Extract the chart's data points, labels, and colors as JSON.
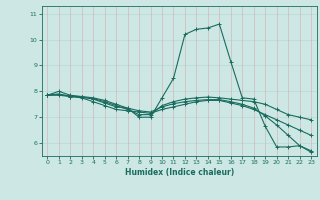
{
  "xlabel": "Humidex (Indice chaleur)",
  "background_color": "#cde8e4",
  "line_color": "#1a6b5e",
  "grid_color_h": "#b8d8d4",
  "grid_color_v": "#d4b8b8",
  "xlim": [
    -0.5,
    23.5
  ],
  "ylim": [
    5.5,
    11.3
  ],
  "yticks": [
    6,
    7,
    8,
    9,
    10,
    11
  ],
  "xticks": [
    0,
    1,
    2,
    3,
    4,
    5,
    6,
    7,
    8,
    9,
    10,
    11,
    12,
    13,
    14,
    15,
    16,
    17,
    18,
    19,
    20,
    21,
    22,
    23
  ],
  "lines": [
    {
      "x": [
        0,
        1,
        2,
        3,
        4,
        5,
        6,
        7,
        8,
        9,
        10,
        11,
        12,
        13,
        14,
        15,
        16,
        17,
        18,
        19,
        20,
        21,
        22,
        23
      ],
      "y": [
        7.85,
        8.0,
        7.85,
        7.8,
        7.75,
        7.65,
        7.5,
        7.35,
        7.0,
        7.0,
        7.75,
        8.5,
        10.2,
        10.4,
        10.45,
        10.6,
        9.15,
        7.75,
        7.7,
        6.65,
        5.85,
        5.85,
        5.9,
        5.7
      ]
    },
    {
      "x": [
        0,
        1,
        2,
        3,
        4,
        5,
        6,
        7,
        8,
        9,
        10,
        11,
        12,
        13,
        14,
        15,
        16,
        17,
        18,
        19,
        20,
        21,
        22,
        23
      ],
      "y": [
        7.85,
        7.85,
        7.8,
        7.78,
        7.72,
        7.6,
        7.45,
        7.3,
        7.1,
        7.1,
        7.45,
        7.6,
        7.7,
        7.75,
        7.78,
        7.75,
        7.7,
        7.65,
        7.6,
        7.5,
        7.3,
        7.1,
        7.0,
        6.9
      ]
    },
    {
      "x": [
        0,
        1,
        2,
        3,
        4,
        5,
        6,
        7,
        8,
        9,
        10,
        11,
        12,
        13,
        14,
        15,
        16,
        17,
        18,
        19,
        20,
        21,
        22,
        23
      ],
      "y": [
        7.85,
        7.9,
        7.8,
        7.75,
        7.6,
        7.45,
        7.3,
        7.25,
        7.2,
        7.15,
        7.3,
        7.4,
        7.5,
        7.6,
        7.65,
        7.65,
        7.55,
        7.45,
        7.3,
        7.1,
        6.9,
        6.7,
        6.5,
        6.3
      ]
    },
    {
      "x": [
        0,
        1,
        2,
        3,
        4,
        5,
        6,
        7,
        8,
        9,
        10,
        11,
        12,
        13,
        14,
        15,
        16,
        17,
        18,
        19,
        20,
        21,
        22,
        23
      ],
      "y": [
        7.85,
        7.88,
        7.82,
        7.78,
        7.7,
        7.55,
        7.4,
        7.35,
        7.25,
        7.2,
        7.4,
        7.52,
        7.6,
        7.65,
        7.68,
        7.68,
        7.6,
        7.5,
        7.35,
        7.05,
        6.7,
        6.3,
        5.9,
        5.65
      ]
    }
  ]
}
